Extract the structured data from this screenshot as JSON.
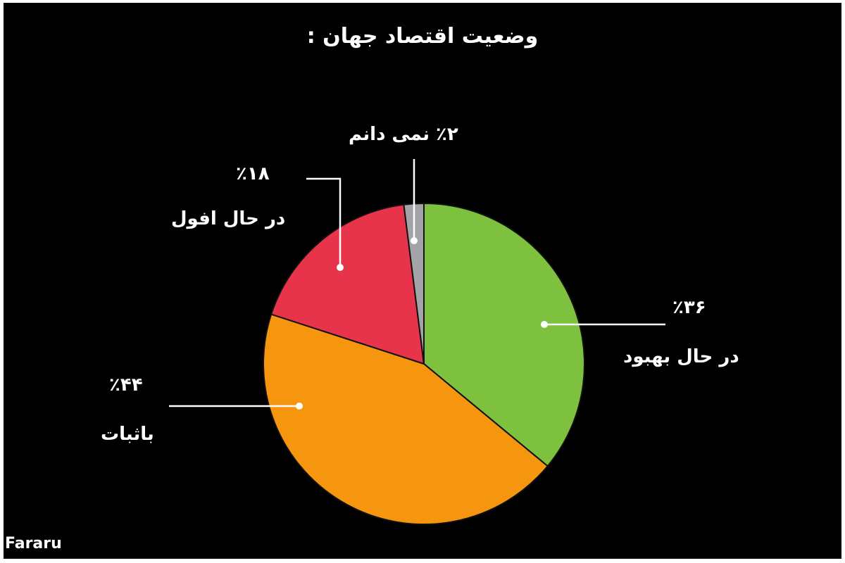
{
  "chart_data": {
    "type": "pie",
    "title": "وضعیت اقتصاد جهان :",
    "slices": [
      {
        "label": "در حال بهبود",
        "value": 36,
        "value_text": "٪۳۶",
        "color": "#7ec13f"
      },
      {
        "label": "باثبات",
        "value": 44,
        "value_text": "٪۴۴",
        "color": "#f5960e"
      },
      {
        "label": "در حال افول",
        "value": 18,
        "value_text": "٪۱۸",
        "color": "#e8344b"
      },
      {
        "label": "نمی دانم",
        "value": 2,
        "value_text": "٪۲",
        "color": "#a4a4a8"
      }
    ],
    "start_angle": "12 o'clock",
    "direction": "clockwise",
    "legend": "none"
  },
  "watermark": "Fararu"
}
